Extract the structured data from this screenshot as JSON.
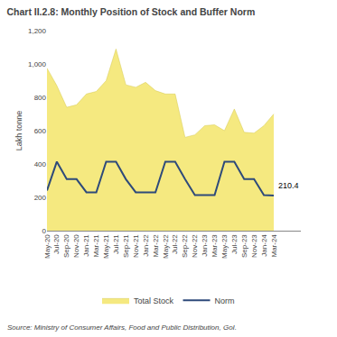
{
  "chart_data": {
    "type": "line",
    "title": "Chart II.2.8: Monthly Position of Stock and Buffer Norm",
    "ylabel": "Lakh tonne",
    "source": "Source: Ministry of Consumer Affairs, Food and Public Distribution, GoI.",
    "categories": [
      "May-20",
      "Jul-20",
      "Sep-20",
      "Nov-20",
      "Jan-21",
      "Mar-21",
      "May-21",
      "Jul-21",
      "Sep-21",
      "Nov-21",
      "Jan-22",
      "Mar-22",
      "May-22",
      "Jul-22",
      "Sep-22",
      "Nov-22",
      "Jan-23",
      "Mar-23",
      "May-23",
      "Jul-23",
      "Sep-23",
      "Nov-23",
      "Jan-24",
      "Mar-24"
    ],
    "series": [
      {
        "name": "Total Stock",
        "type": "area",
        "color": "#f5e980",
        "values": [
          975,
          870,
          740,
          755,
          820,
          835,
          900,
          1090,
          875,
          860,
          890,
          840,
          820,
          820,
          560,
          575,
          630,
          635,
          600,
          730,
          590,
          585,
          630,
          700
        ]
      },
      {
        "name": "Norm",
        "type": "line",
        "color": "#2e4a7a",
        "values": [
          241,
          414,
          309,
          309,
          230,
          230,
          414,
          414,
          309,
          230,
          230,
          230,
          414,
          414,
          309,
          214,
          214,
          214,
          414,
          414,
          309,
          309,
          214,
          210.4
        ]
      }
    ],
    "annotations": [
      {
        "text": "210.4",
        "x": "Mar-24",
        "y": 210.4
      }
    ],
    "ylim": [
      0,
      1200
    ],
    "yticks": [
      0,
      200,
      400,
      600,
      800,
      {
        "value": 1000,
        "label": "1,000"
      },
      {
        "value": 1200,
        "label": "1,200"
      }
    ],
    "grid": false,
    "legend": "bottom"
  }
}
